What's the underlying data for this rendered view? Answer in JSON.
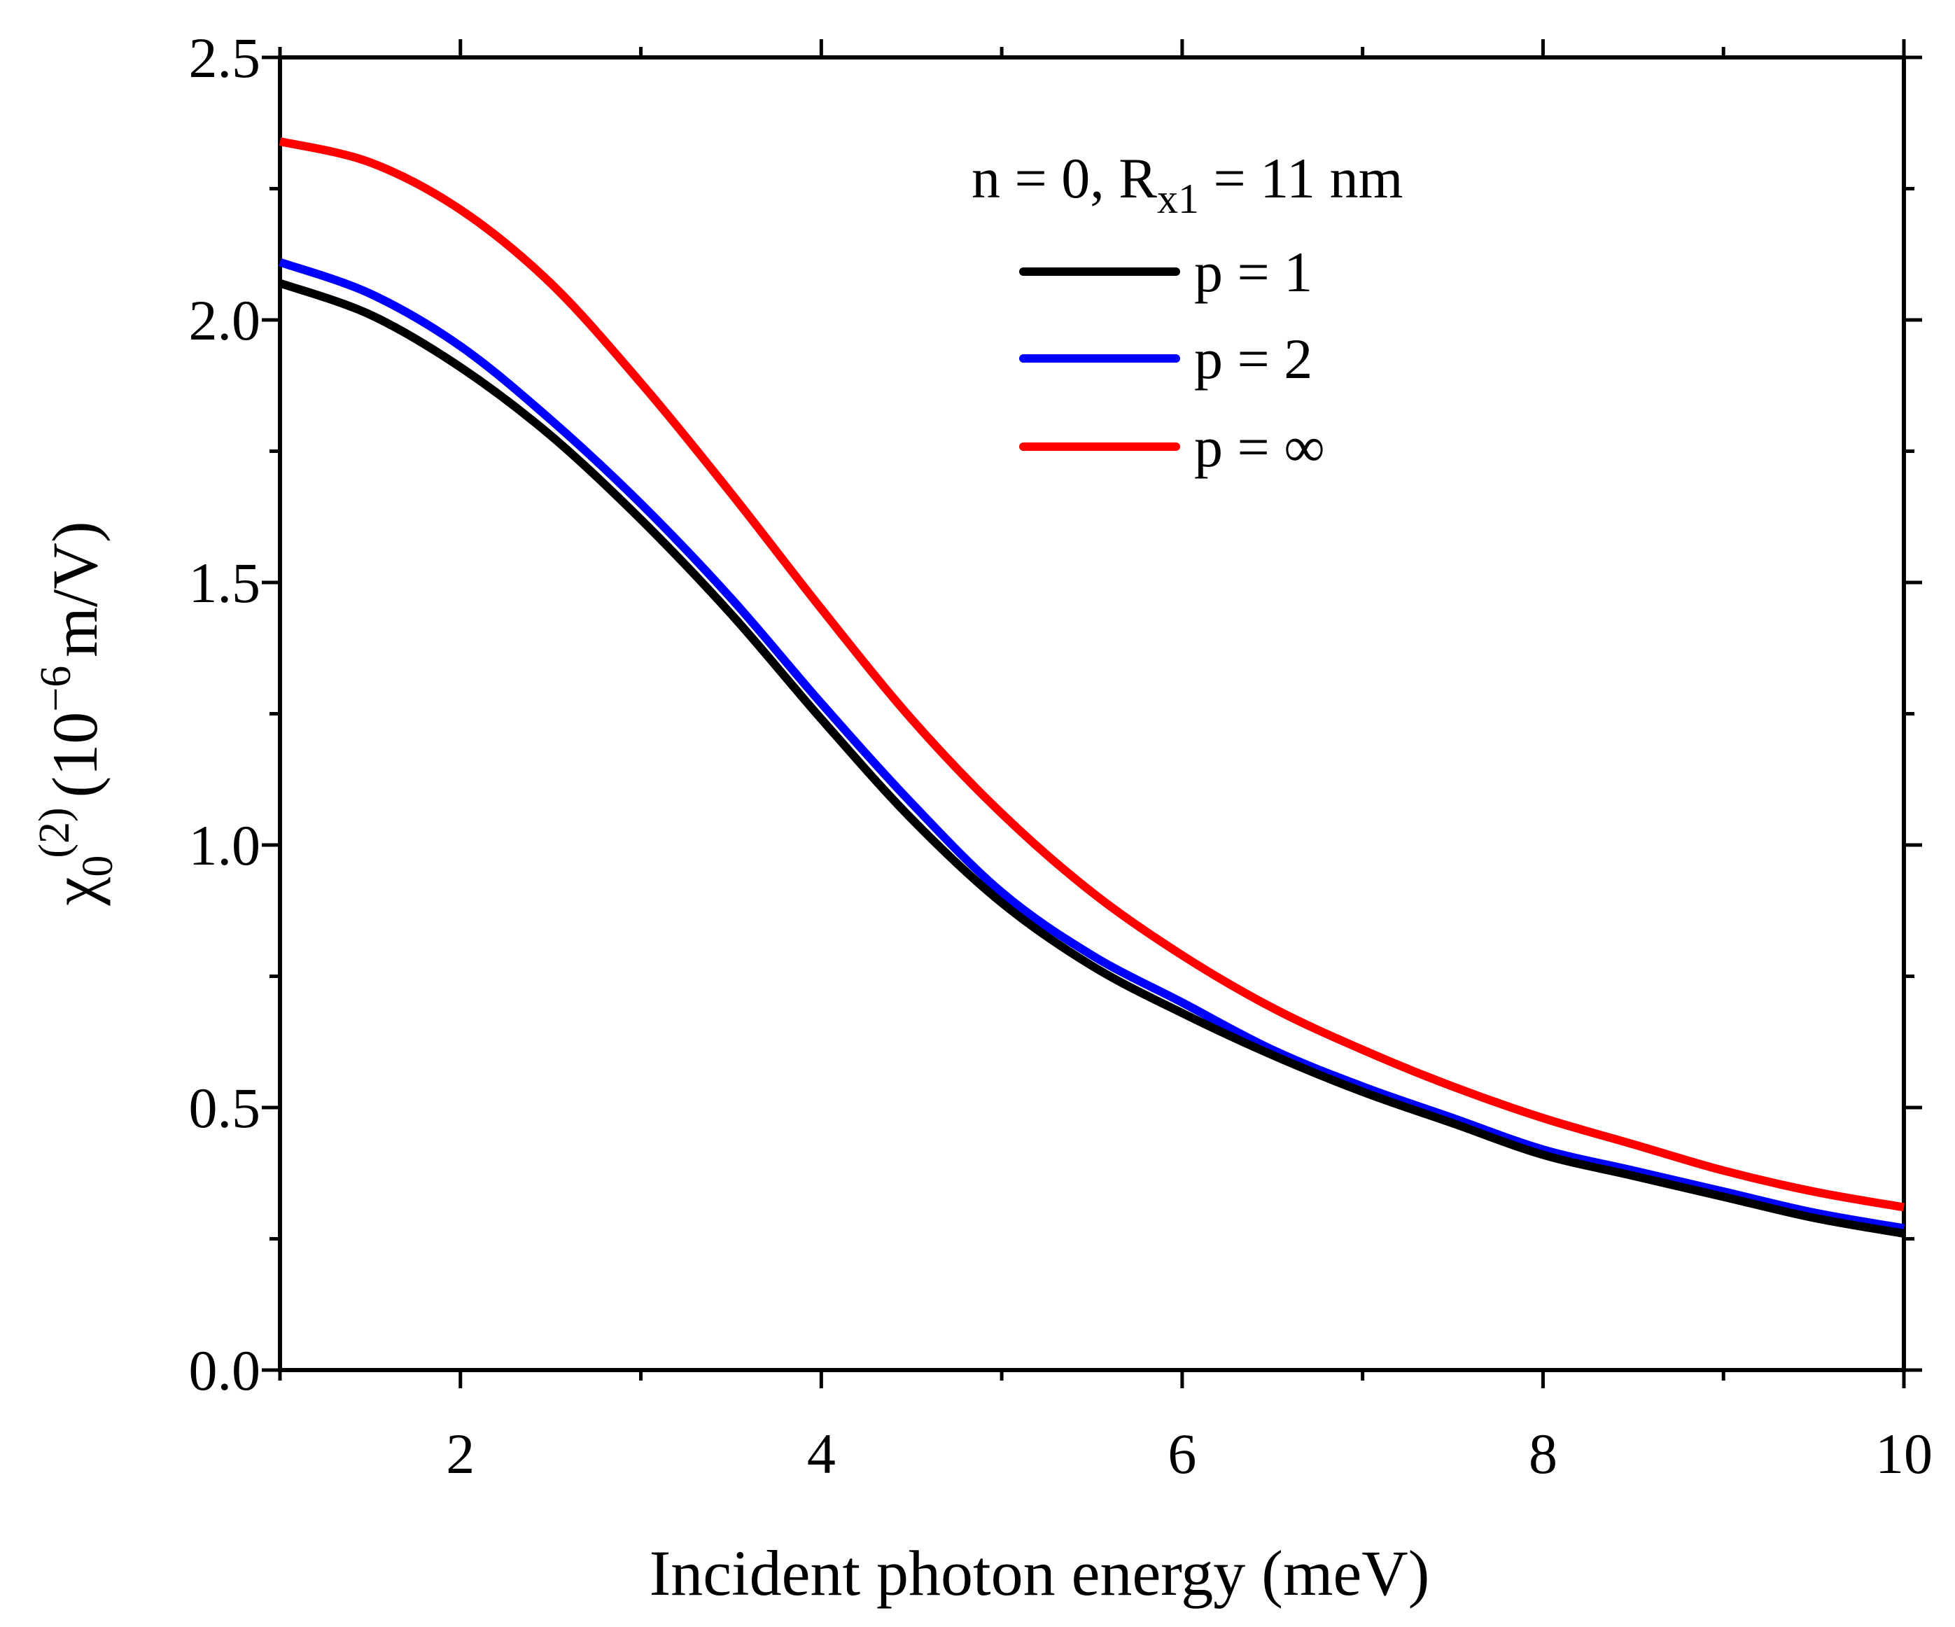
{
  "chart_data": {
    "type": "line",
    "xlabel": "Incident photon energy (meV)",
    "ylabel": {
      "symbol": "χ",
      "subscript": "0",
      "superscript": "(2)",
      "unit_open": "(10",
      "unit_exp": "−6",
      "unit_close": "m/V)"
    },
    "xlim": [
      1,
      10
    ],
    "ylim": [
      0,
      2.5
    ],
    "x_ticks": [
      2,
      4,
      6,
      8,
      10
    ],
    "x_tick_labels": [
      "2",
      "4",
      "6",
      "8",
      "10"
    ],
    "y_ticks": [
      0,
      0.5,
      1.0,
      1.5,
      2.0,
      2.5
    ],
    "y_tick_labels": [
      "0.0",
      "0.5",
      "1.0",
      "1.5",
      "2.0",
      "2.5"
    ],
    "legend": {
      "title_main": "n = 0, R",
      "title_sub": "x1",
      "title_tail": " = 11 nm",
      "placement": "top-right"
    },
    "series": [
      {
        "name": "p = 1",
        "color": "#000000",
        "x": [
          1,
          1.5,
          2,
          2.5,
          3,
          3.5,
          4,
          4.5,
          5,
          5.5,
          6,
          6.5,
          7,
          7.5,
          8,
          8.5,
          9,
          9.5,
          10
        ],
        "values": [
          2.07,
          2.01,
          1.91,
          1.78,
          1.62,
          1.44,
          1.24,
          1.05,
          0.89,
          0.77,
          0.68,
          0.6,
          0.53,
          0.47,
          0.41,
          0.37,
          0.33,
          0.29,
          0.26
        ]
      },
      {
        "name": "p = 2",
        "color": "#0000ff",
        "x": [
          1,
          1.5,
          2,
          2.5,
          3,
          3.5,
          4,
          4.5,
          5,
          5.5,
          6,
          6.5,
          7,
          7.5,
          8,
          8.5,
          9,
          9.5,
          10
        ],
        "values": [
          2.11,
          2.05,
          1.95,
          1.81,
          1.65,
          1.47,
          1.27,
          1.08,
          0.91,
          0.79,
          0.7,
          0.61,
          0.54,
          0.48,
          0.42,
          0.38,
          0.34,
          0.3,
          0.27
        ]
      },
      {
        "name": "p = ∞",
        "color": "#ff0000",
        "x": [
          1,
          1.5,
          2,
          2.5,
          3,
          3.5,
          4,
          4.5,
          5,
          5.5,
          6,
          6.5,
          7,
          7.5,
          8,
          8.5,
          9,
          9.5,
          10
        ],
        "values": [
          2.34,
          2.3,
          2.21,
          2.07,
          1.88,
          1.67,
          1.45,
          1.24,
          1.06,
          0.91,
          0.79,
          0.69,
          0.61,
          0.54,
          0.48,
          0.43,
          0.38,
          0.34,
          0.31
        ]
      }
    ]
  }
}
